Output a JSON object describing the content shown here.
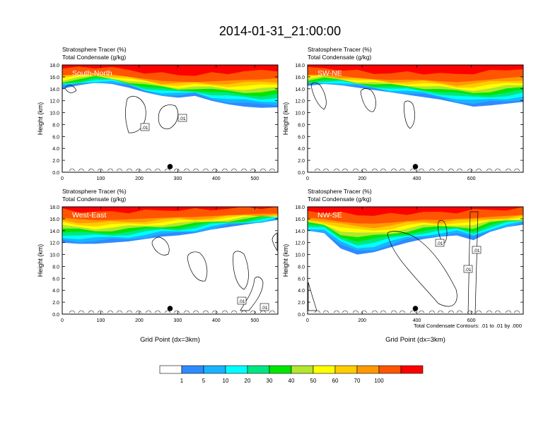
{
  "figure": {
    "title": "2014-01-31_21:00:00",
    "footnote": "Total Condensate Contours: .01 to .01 by .000"
  },
  "colors": {
    "levels": [
      "#ffffff",
      "#2e8bff",
      "#1ab3ff",
      "#00ffff",
      "#00e680",
      "#00e600",
      "#b3e62e",
      "#ffff00",
      "#ffcc00",
      "#ff9900",
      "#ff5500",
      "#ff0000"
    ]
  },
  "chart_data": [
    {
      "type": "heatmap",
      "title": "South-North",
      "label_left_1": "Stratosphere Tracer   (%)",
      "label_left_2": "Total Condensate   (g/kg)",
      "xlabel": "",
      "ylabel": "Height (km)",
      "xlim": [
        0,
        560
      ],
      "ylim": [
        0,
        18
      ],
      "xticks": [
        "0",
        "100",
        "200",
        "300",
        "400",
        "500"
      ],
      "yticks": [
        "0.0",
        "2.0",
        "4.0",
        "6.0",
        "8.0",
        "10.0",
        "12.0",
        "14.0",
        "16.0",
        "18.0"
      ],
      "contour_labels": [
        ".01",
        ".01"
      ],
      "marker_x": 280,
      "tracer_base_km": [
        14.0,
        14.6,
        15.0,
        14.8,
        14.2,
        13.4,
        12.8,
        12.5,
        12.8,
        12.0,
        11.4,
        11.0,
        10.8,
        10.9
      ],
      "red_base_km": [
        16.5,
        16.6,
        16.8,
        16.6,
        16.2,
        15.9,
        15.6,
        15.5,
        15.4,
        15.6,
        15.8,
        16.0,
        16.1,
        16.3
      ]
    },
    {
      "type": "heatmap",
      "title": "SW-NE",
      "label_left_1": "Stratosphere Tracer   (%)",
      "label_left_2": "Total Condensate   (g/kg)",
      "xlabel": "",
      "ylabel": "Height (km)",
      "xlim": [
        0,
        790
      ],
      "ylim": [
        0,
        18
      ],
      "xticks": [
        "0",
        "200",
        "400",
        "600"
      ],
      "yticks": [
        "0.0",
        "2.0",
        "4.0",
        "6.0",
        "8.0",
        "10.0",
        "12.0",
        "14.0",
        "16.0",
        "18.0"
      ],
      "contour_labels": [],
      "marker_x": 395,
      "tracer_base_km": [
        14.5,
        14.8,
        14.6,
        14.2,
        13.8,
        13.4,
        13.0,
        12.6,
        12.2,
        11.6,
        11.0,
        11.2,
        11.5,
        11.8
      ],
      "red_base_km": [
        16.5,
        16.6,
        16.3,
        16.0,
        15.8,
        15.7,
        15.8,
        15.8,
        15.6,
        15.5,
        15.8,
        16.0,
        16.3,
        16.5
      ]
    },
    {
      "type": "heatmap",
      "title": "West-East",
      "label_left_1": "Stratosphere Tracer   (%)",
      "label_left_2": "Total Condensate   (g/kg)",
      "xlabel": "Grid Point (dx=3km)",
      "ylabel": "Height (km)",
      "xlim": [
        0,
        560
      ],
      "ylim": [
        0,
        18
      ],
      "xticks": [
        "0",
        "100",
        "200",
        "300",
        "400",
        "500"
      ],
      "yticks": [
        "0.0",
        "2.0",
        "4.0",
        "6.0",
        "8.0",
        "10.0",
        "12.0",
        "14.0",
        "16.0",
        "18.0"
      ],
      "contour_labels": [
        ".01",
        ".01"
      ],
      "marker_x": 280,
      "tracer_base_km": [
        12.0,
        11.8,
        11.8,
        12.0,
        12.2,
        12.6,
        13.0,
        13.2,
        13.6,
        14.2,
        14.6,
        15.0,
        15.4,
        15.8
      ],
      "red_base_km": [
        16.6,
        16.4,
        16.2,
        16.2,
        16.3,
        16.4,
        16.5,
        16.6,
        16.6,
        16.7,
        16.8,
        16.9,
        17.0,
        17.0
      ]
    },
    {
      "type": "heatmap",
      "title": "NW-SE",
      "label_left_1": "Stratosphere Tracer   (%)",
      "label_left_2": "Total Condensate   (g/kg)",
      "xlabel": "Grid Point (dx=3km)",
      "ylabel": "Height (km)",
      "xlim": [
        0,
        790
      ],
      "ylim": [
        0,
        18
      ],
      "xticks": [
        "0",
        "200",
        "400",
        "600"
      ],
      "yticks": [
        "0.0",
        "2.0",
        "4.0",
        "6.0",
        "8.0",
        "10.0",
        "12.0",
        "14.0",
        "16.0",
        "18.0"
      ],
      "contour_labels": [
        ".01",
        ".01",
        ".01"
      ],
      "marker_x": 395,
      "tracer_base_km": [
        14.0,
        13.6,
        11.0,
        10.0,
        10.4,
        11.2,
        12.0,
        12.6,
        13.0,
        13.2,
        12.4,
        13.8,
        14.6,
        15.0
      ],
      "red_base_km": [
        16.4,
        16.2,
        16.0,
        15.8,
        15.7,
        15.8,
        16.0,
        16.2,
        16.1,
        16.3,
        16.5,
        16.6,
        16.7,
        16.8
      ]
    }
  ],
  "colorbar": {
    "labels": [
      "1",
      "5",
      "10",
      "20",
      "30",
      "40",
      "50",
      "60",
      "70",
      "100"
    ]
  }
}
